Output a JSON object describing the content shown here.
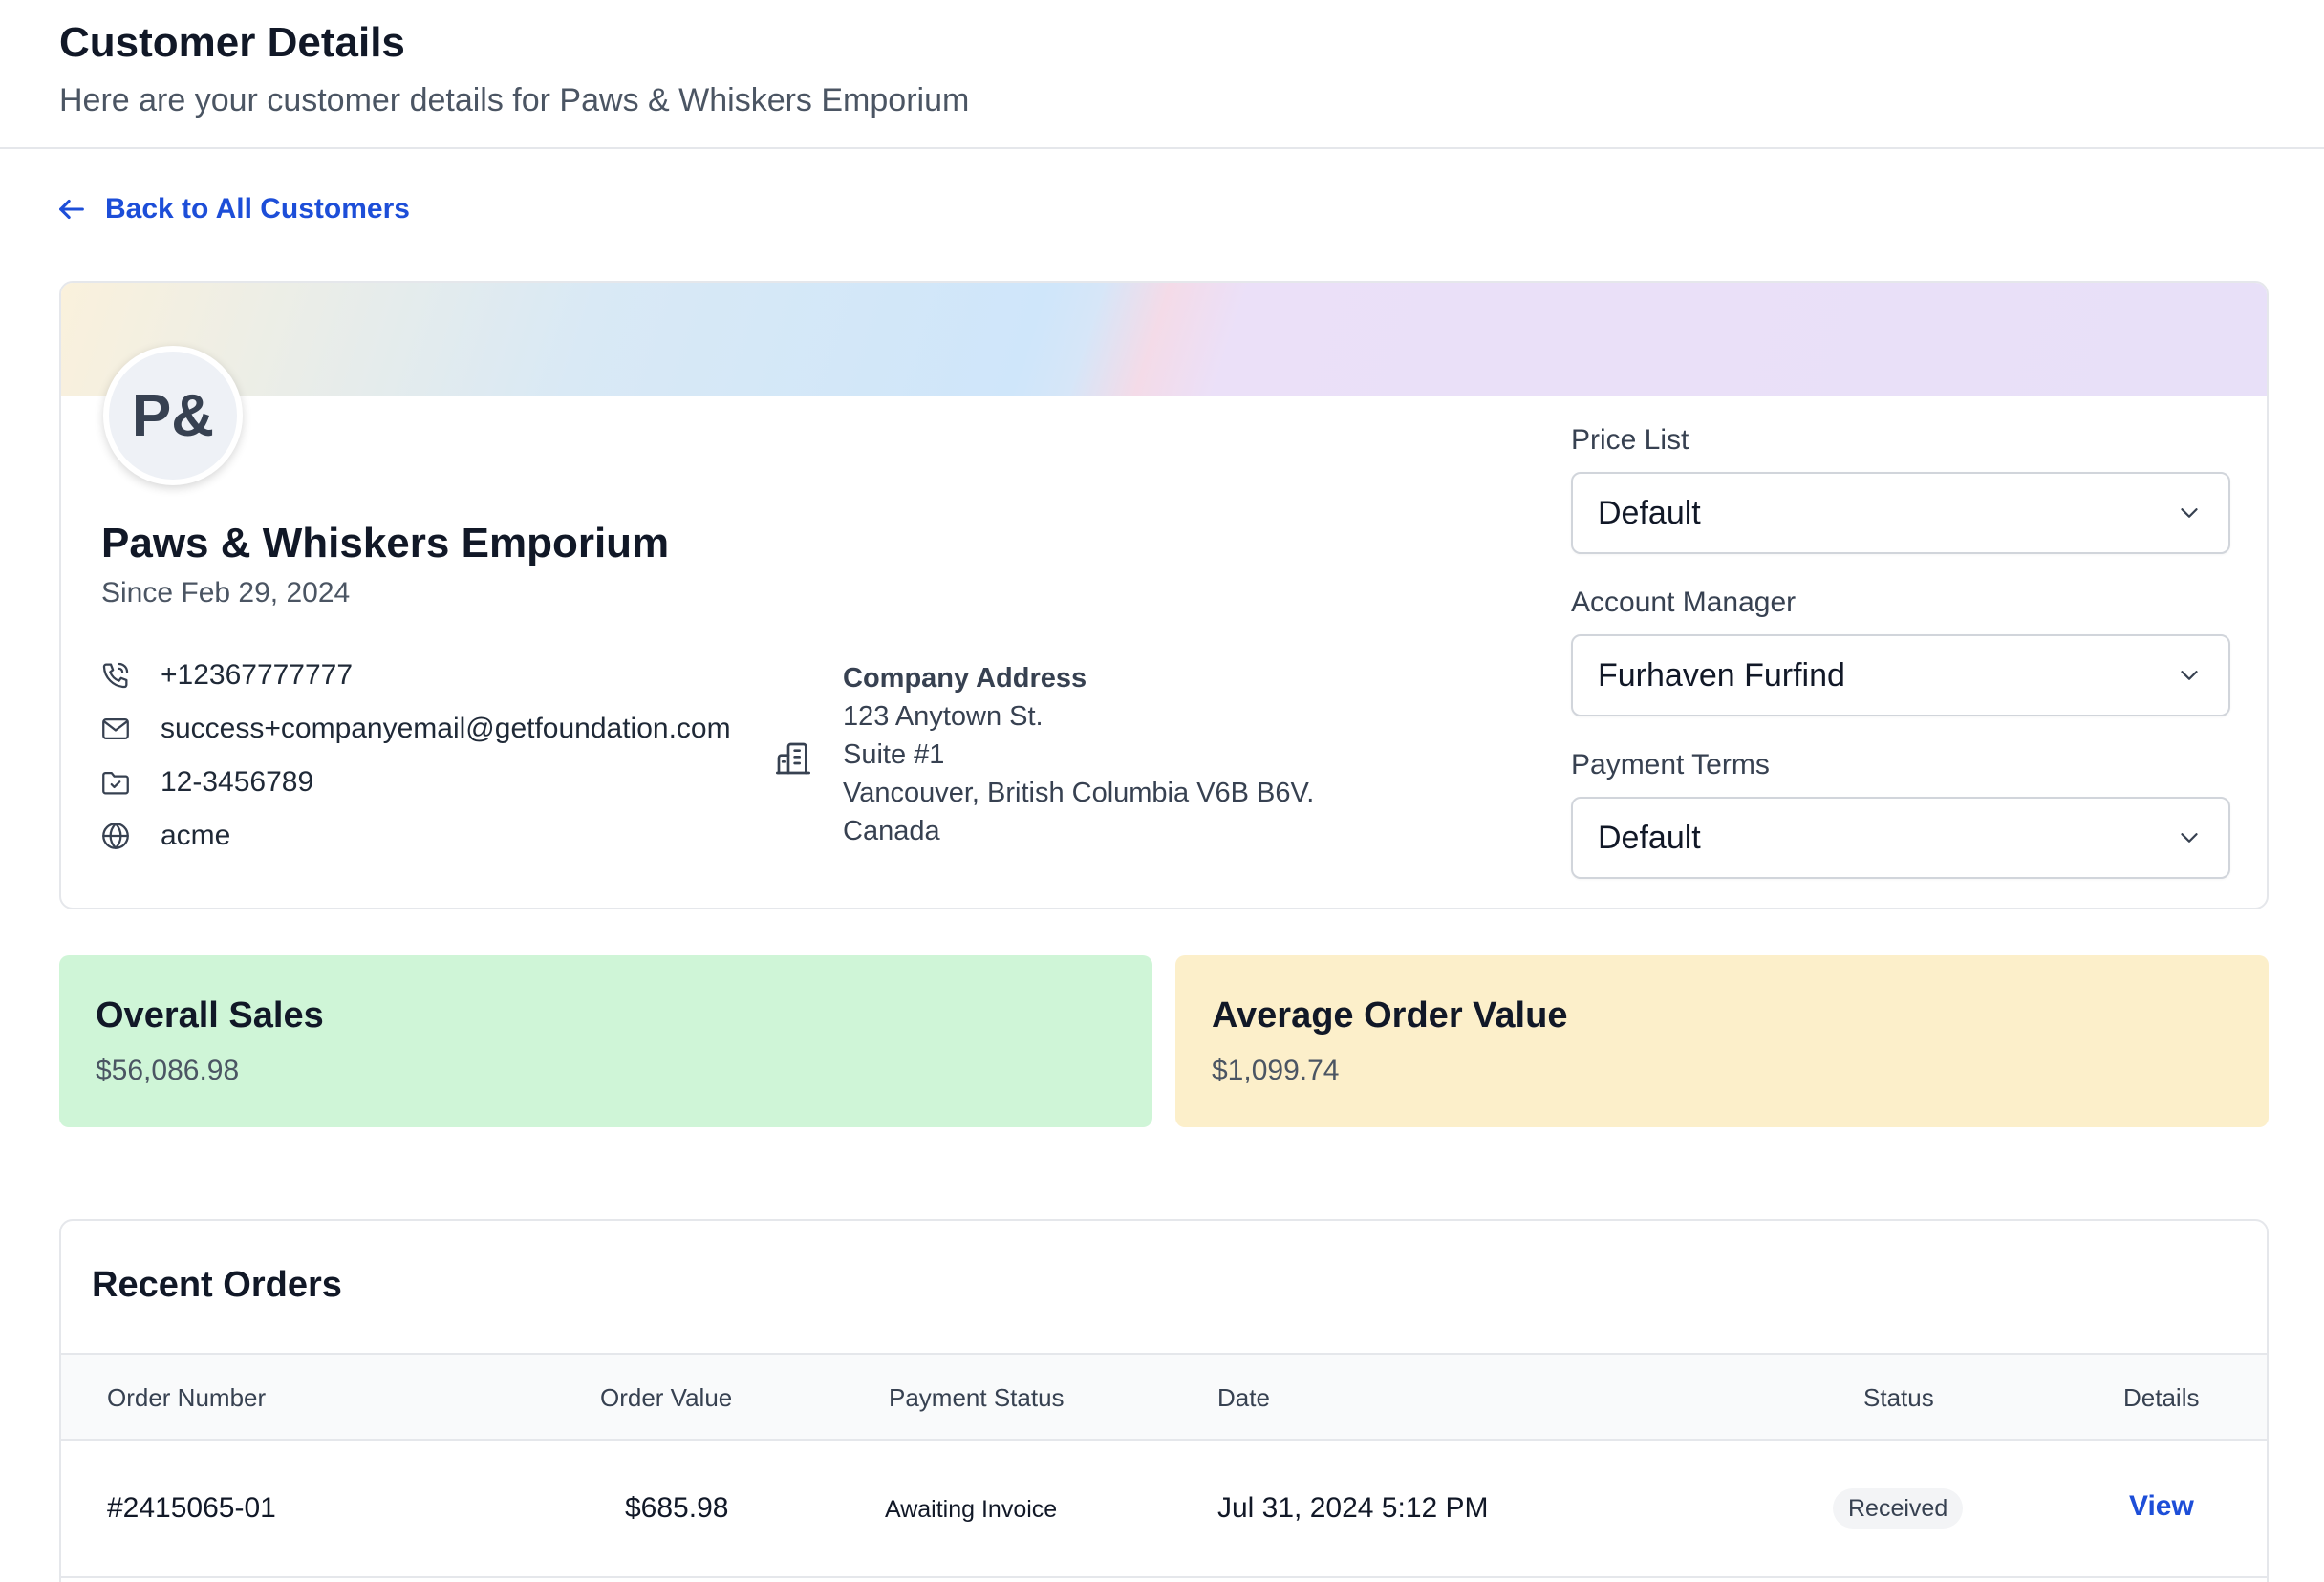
{
  "header": {
    "title": "Customer Details",
    "subtitle": "Here are your customer details for Paws & Whiskers Emporium"
  },
  "back_link": {
    "label": "Back to All Customers",
    "icon": "arrow-left-icon"
  },
  "customer": {
    "initials": "P&",
    "name": "Paws & Whiskers Emporium",
    "since": "Since Feb 29, 2024",
    "contacts": [
      {
        "icon": "phone-icon",
        "value": "+12367777777"
      },
      {
        "icon": "mail-icon",
        "value": "success+companyemail@getfoundation.com"
      },
      {
        "icon": "folder-check-icon",
        "value": "12-3456789"
      },
      {
        "icon": "globe-icon",
        "value": "acme"
      }
    ],
    "address": {
      "icon": "building-icon",
      "title": "Company Address",
      "lines": [
        "123 Anytown St.",
        "Suite #1",
        "Vancouver, British Columbia V6B B6V.",
        "Canada"
      ]
    }
  },
  "settings": {
    "price_list": {
      "label": "Price List",
      "value": "Default"
    },
    "account_manager": {
      "label": "Account Manager",
      "value": "Furhaven Furfind"
    },
    "payment_terms": {
      "label": "Payment Terms",
      "value": "Default"
    }
  },
  "stats": {
    "overall_sales": {
      "title": "Overall Sales",
      "value": "$56,086.98",
      "color": "#cff5d7"
    },
    "average_order_value": {
      "title": "Average Order Value",
      "value": "$1,099.74",
      "color": "#fcefca"
    }
  },
  "orders": {
    "title": "Recent Orders",
    "columns": [
      "Order Number",
      "Order Value",
      "Payment Status",
      "Date",
      "Status",
      "Details"
    ],
    "rows": [
      {
        "order_number": "#2415065-01",
        "order_value": "$685.98",
        "payment_status": "Awaiting Invoice",
        "date": "Jul 31, 2024 5:12 PM",
        "status": "Received",
        "details": "View"
      }
    ]
  },
  "colors": {
    "accent": "#1d4ed8",
    "border": "#e5e7eb",
    "text": "#111827",
    "muted": "#4b5563"
  }
}
